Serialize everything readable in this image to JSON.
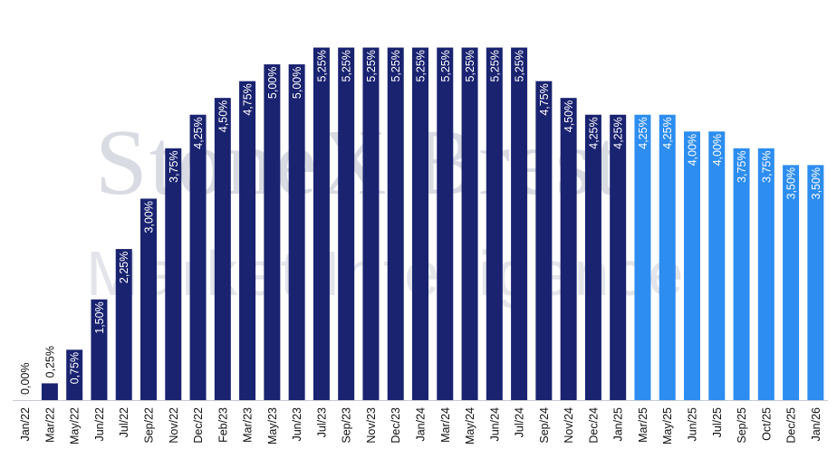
{
  "watermark": {
    "line1": "StoneX Brest",
    "line2": "Market Intelligence"
  },
  "colors": {
    "actual": "#1a2370",
    "forecast": "#2d8df0",
    "axis": "#c8cbd3",
    "label_text": "#ffffff",
    "outside_label_text": "#111111"
  },
  "chart_data": {
    "type": "bar",
    "title": "",
    "xlabel": "",
    "ylabel": "",
    "ylim": [
      0,
      5.5
    ],
    "grid": false,
    "legend": "none",
    "categories": [
      "Jan/22",
      "Mar/22",
      "May/22",
      "Jun/22",
      "Jul/22",
      "Sep/22",
      "Nov/22",
      "Dec/22",
      "Feb/23",
      "Mar/23",
      "May/23",
      "Jun/23",
      "Jul/23",
      "Sep/23",
      "Nov/23",
      "Dec/23",
      "Jan/24",
      "Mar/24",
      "May/24",
      "Jun/24",
      "Jul/24",
      "Sep/24",
      "Nov/24",
      "Dec/24",
      "Jan/25",
      "Mar/25",
      "May/25",
      "Jun/25",
      "Jul/25",
      "Sep/25",
      "Oct/25",
      "Dec/25",
      "Jan/26"
    ],
    "values": [
      0.0,
      0.25,
      0.75,
      1.5,
      2.25,
      3.0,
      3.75,
      4.25,
      4.5,
      4.75,
      5.0,
      5.0,
      5.25,
      5.25,
      5.25,
      5.25,
      5.25,
      5.25,
      5.25,
      5.25,
      5.25,
      4.75,
      4.5,
      4.25,
      4.25,
      4.25,
      4.25,
      4.0,
      4.0,
      3.75,
      3.75,
      3.5,
      3.5
    ],
    "labels": [
      "0,00%",
      "0,25%",
      "0,75%",
      "1,50%",
      "2,25%",
      "3,00%",
      "3,75%",
      "4,25%",
      "4,50%",
      "4,75%",
      "5,00%",
      "5,00%",
      "5,25%",
      "5,25%",
      "5,25%",
      "5,25%",
      "5,25%",
      "5,25%",
      "5,25%",
      "5,25%",
      "5,25%",
      "4,75%",
      "4,50%",
      "4,25%",
      "4,25%",
      "4,25%",
      "4,25%",
      "4,00%",
      "4,00%",
      "3,75%",
      "3,75%",
      "3,50%",
      "3,50%"
    ],
    "forecast_from_index": 25
  }
}
